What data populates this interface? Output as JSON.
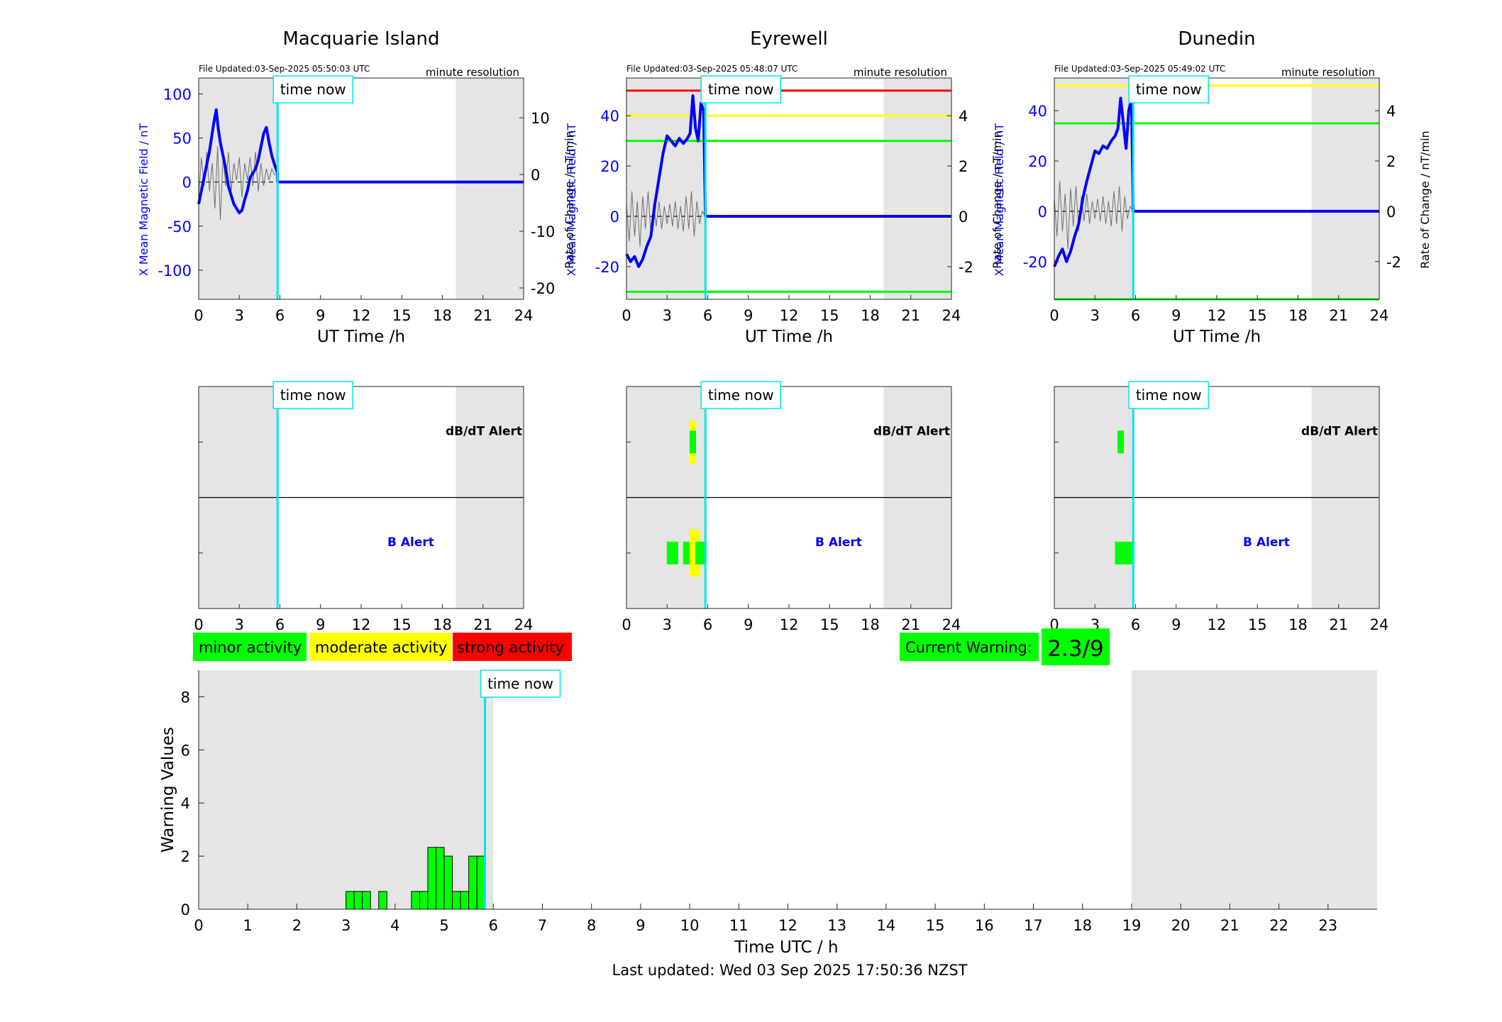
{
  "colors": {
    "background": "#ffffff",
    "night_shade": "#e5e5e5",
    "x_field": "#0000ff",
    "rate_of_change": "#707070",
    "time_now": "#00e5ee",
    "minor": "#00ff00",
    "moderate": "#ffff00",
    "strong": "#ff0000",
    "axis": "#262626"
  },
  "common": {
    "time_now_label": "time now",
    "resolution_label": "minute resolution",
    "xlabel": "UT Time /h",
    "y_left_label": "X Mean Magnetic Field / nT",
    "y_right_label": "Rate of Change / nT/min",
    "xticks": [
      0,
      3,
      6,
      9,
      12,
      15,
      18,
      21,
      24
    ],
    "dbdt_alert_label": "dB/dT Alert",
    "b_alert_label": "B Alert"
  },
  "stations": [
    {
      "id": "macquarie",
      "title": "Macquarie Island",
      "file_updated": "File Updated:03-Sep-2025 05:50:03 UTC",
      "time_now_h": 5.83,
      "night_h": [
        [
          0,
          5.83
        ],
        [
          19,
          24
        ]
      ],
      "field_chart": {
        "type": "line",
        "ylim_left": [
          -133,
          118
        ],
        "yticks_left": [
          -100,
          -50,
          0,
          50,
          100
        ],
        "ylim_right": [
          -22,
          17
        ],
        "yticks_right": [
          -20,
          -10,
          0,
          10
        ],
        "thresholds": [],
        "x_series": [
          [
            0,
            -25
          ],
          [
            0.2,
            -10
          ],
          [
            0.4,
            5
          ],
          [
            0.6,
            20
          ],
          [
            0.8,
            35
          ],
          [
            1,
            55
          ],
          [
            1.15,
            70
          ],
          [
            1.3,
            82
          ],
          [
            1.45,
            60
          ],
          [
            1.6,
            45
          ],
          [
            1.8,
            30
          ],
          [
            2,
            15
          ],
          [
            2.2,
            -5
          ],
          [
            2.4,
            -15
          ],
          [
            2.6,
            -25
          ],
          [
            2.8,
            -30
          ],
          [
            3,
            -35
          ],
          [
            3.2,
            -32
          ],
          [
            3.4,
            -20
          ],
          [
            3.6,
            -10
          ],
          [
            3.8,
            5
          ],
          [
            4,
            10
          ],
          [
            4.2,
            15
          ],
          [
            4.4,
            25
          ],
          [
            4.6,
            40
          ],
          [
            4.8,
            55
          ],
          [
            5,
            62
          ],
          [
            5.2,
            45
          ],
          [
            5.4,
            30
          ],
          [
            5.6,
            20
          ],
          [
            5.83,
            10
          ],
          [
            5.83,
            0
          ],
          [
            24,
            0
          ]
        ],
        "rate_series": [
          [
            0,
            -4
          ],
          [
            0.2,
            3
          ],
          [
            0.4,
            -2
          ],
          [
            0.6,
            4
          ],
          [
            0.8,
            -3
          ],
          [
            1,
            2
          ],
          [
            1.2,
            -6
          ],
          [
            1.4,
            5
          ],
          [
            1.6,
            -8
          ],
          [
            1.8,
            3
          ],
          [
            2,
            -2
          ],
          [
            2.2,
            4
          ],
          [
            2.4,
            -3
          ],
          [
            2.6,
            2
          ],
          [
            2.8,
            -1
          ],
          [
            3,
            3
          ],
          [
            3.2,
            -4
          ],
          [
            3.4,
            2
          ],
          [
            3.6,
            -1
          ],
          [
            3.8,
            3
          ],
          [
            4,
            -2
          ],
          [
            4.2,
            4
          ],
          [
            4.4,
            -3
          ],
          [
            4.6,
            2
          ],
          [
            4.8,
            -2
          ],
          [
            5,
            1
          ],
          [
            5.2,
            -1
          ],
          [
            5.4,
            1
          ],
          [
            5.6,
            0
          ],
          [
            5.83,
            0
          ]
        ]
      },
      "alerts": {
        "dbdt": [],
        "b": []
      }
    },
    {
      "id": "eyrewell",
      "title": "Eyrewell",
      "file_updated": "File Updated:03-Sep-2025 05:48:07 UTC",
      "time_now_h": 5.83,
      "night_h": [
        [
          0,
          5.83
        ],
        [
          19,
          24
        ]
      ],
      "field_chart": {
        "type": "line",
        "ylim_left": [
          -33,
          55
        ],
        "yticks_left": [
          -20,
          0,
          20,
          40
        ],
        "ylim_right": [
          -3.3,
          5.5
        ],
        "yticks_right": [
          -2,
          0,
          2,
          4
        ],
        "thresholds": [
          {
            "value": 50,
            "level": "strong"
          },
          {
            "value": 40,
            "level": "moderate"
          },
          {
            "value": 30,
            "level": "minor"
          },
          {
            "value": -30,
            "level": "minor"
          }
        ],
        "x_series": [
          [
            0,
            -15
          ],
          [
            0.3,
            -18
          ],
          [
            0.6,
            -16
          ],
          [
            0.9,
            -20
          ],
          [
            1.2,
            -17
          ],
          [
            1.5,
            -12
          ],
          [
            1.8,
            -8
          ],
          [
            2.1,
            5
          ],
          [
            2.4,
            15
          ],
          [
            2.7,
            25
          ],
          [
            3,
            32
          ],
          [
            3.3,
            30
          ],
          [
            3.6,
            28
          ],
          [
            3.9,
            31
          ],
          [
            4.2,
            29
          ],
          [
            4.5,
            31
          ],
          [
            4.7,
            33
          ],
          [
            4.9,
            48
          ],
          [
            5.1,
            35
          ],
          [
            5.3,
            30
          ],
          [
            5.5,
            45
          ],
          [
            5.7,
            42
          ],
          [
            5.83,
            0
          ],
          [
            24,
            0
          ]
        ],
        "rate_series": [
          [
            0,
            0.5
          ],
          [
            0.2,
            -1
          ],
          [
            0.4,
            1
          ],
          [
            0.6,
            -0.8
          ],
          [
            0.8,
            0.6
          ],
          [
            1,
            -1.2
          ],
          [
            1.2,
            0.8
          ],
          [
            1.4,
            -0.5
          ],
          [
            1.6,
            1
          ],
          [
            1.8,
            -0.7
          ],
          [
            2,
            0.5
          ],
          [
            2.2,
            -0.4
          ],
          [
            2.4,
            0.6
          ],
          [
            2.6,
            -0.5
          ],
          [
            2.8,
            0.4
          ],
          [
            3,
            -0.3
          ],
          [
            3.2,
            0.5
          ],
          [
            3.4,
            -0.4
          ],
          [
            3.6,
            0.6
          ],
          [
            3.8,
            -0.5
          ],
          [
            4,
            0.4
          ],
          [
            4.2,
            -0.6
          ],
          [
            4.4,
            0.8
          ],
          [
            4.6,
            -0.5
          ],
          [
            4.8,
            1
          ],
          [
            5,
            -0.8
          ],
          [
            5.2,
            0.6
          ],
          [
            5.4,
            -0.3
          ],
          [
            5.6,
            0.2
          ],
          [
            5.83,
            0
          ]
        ]
      },
      "alerts": {
        "dbdt": [
          {
            "h": 4.9,
            "level": "moderate"
          },
          {
            "h": 4.9,
            "level": "minor"
          }
        ],
        "b": [
          {
            "h": 3.4,
            "level": "minor"
          },
          {
            "h": 4.6,
            "level": "minor"
          },
          {
            "h": 4.9,
            "level": "moderate"
          },
          {
            "h": 5.2,
            "level": "moderate"
          },
          {
            "h": 5.5,
            "level": "minor"
          }
        ]
      }
    },
    {
      "id": "dunedin",
      "title": "Dunedin",
      "file_updated": "File Updated:03-Sep-2025 05:49:02 UTC",
      "time_now_h": 5.83,
      "night_h": [
        [
          0,
          5.83
        ],
        [
          19,
          24
        ]
      ],
      "field_chart": {
        "type": "line",
        "ylim_left": [
          -35,
          53
        ],
        "yticks_left": [
          -20,
          0,
          20,
          40
        ],
        "ylim_right": [
          -3.5,
          5.3
        ],
        "yticks_right": [
          -2,
          0,
          2,
          4
        ],
        "thresholds": [
          {
            "value": 50,
            "level": "moderate"
          },
          {
            "value": 35,
            "level": "minor"
          },
          {
            "value": -35,
            "level": "minor"
          }
        ],
        "x_series": [
          [
            0,
            -22
          ],
          [
            0.3,
            -18
          ],
          [
            0.6,
            -15
          ],
          [
            0.9,
            -20
          ],
          [
            1.2,
            -16
          ],
          [
            1.5,
            -10
          ],
          [
            1.8,
            -5
          ],
          [
            2.1,
            5
          ],
          [
            2.4,
            12
          ],
          [
            2.7,
            18
          ],
          [
            3,
            24
          ],
          [
            3.3,
            23
          ],
          [
            3.6,
            26
          ],
          [
            3.9,
            25
          ],
          [
            4.2,
            28
          ],
          [
            4.5,
            30
          ],
          [
            4.7,
            33
          ],
          [
            4.9,
            45
          ],
          [
            5.1,
            35
          ],
          [
            5.3,
            25
          ],
          [
            5.5,
            40
          ],
          [
            5.7,
            45
          ],
          [
            5.83,
            0
          ],
          [
            24,
            0
          ]
        ],
        "rate_series": [
          [
            0,
            0.5
          ],
          [
            0.2,
            -1
          ],
          [
            0.4,
            1.2
          ],
          [
            0.6,
            -0.8
          ],
          [
            0.8,
            0.7
          ],
          [
            1,
            -1.5
          ],
          [
            1.2,
            0.9
          ],
          [
            1.4,
            -0.6
          ],
          [
            1.6,
            1
          ],
          [
            1.8,
            -0.8
          ],
          [
            2,
            0.6
          ],
          [
            2.2,
            -0.4
          ],
          [
            2.4,
            0.7
          ],
          [
            2.6,
            -0.5
          ],
          [
            2.8,
            0.4
          ],
          [
            3,
            -0.3
          ],
          [
            3.2,
            0.5
          ],
          [
            3.4,
            -0.4
          ],
          [
            3.6,
            0.6
          ],
          [
            3.8,
            -0.5
          ],
          [
            4,
            0.4
          ],
          [
            4.2,
            -0.6
          ],
          [
            4.4,
            0.8
          ],
          [
            4.6,
            -0.5
          ],
          [
            4.8,
            1
          ],
          [
            5,
            -0.8
          ],
          [
            5.2,
            0.6
          ],
          [
            5.4,
            -0.3
          ],
          [
            5.6,
            0.2
          ],
          [
            5.83,
            0
          ]
        ]
      },
      "alerts": {
        "dbdt": [
          {
            "h": 4.9,
            "level": "minor"
          }
        ],
        "b": [
          {
            "h": 4.9,
            "level": "minor"
          },
          {
            "h": 5.5,
            "level": "minor"
          }
        ]
      }
    }
  ],
  "legend": {
    "minor": "minor activity",
    "moderate": "moderate activity",
    "strong": "strong activity"
  },
  "current_warning": {
    "label": "Current Warning:",
    "value": "2.3/9"
  },
  "chart_data": {
    "type": "bar",
    "ylabel": "Warning Values",
    "xlabel": "Time UTC / h",
    "ylim": [
      0,
      9
    ],
    "yticks": [
      0,
      2,
      4,
      6,
      8
    ],
    "xlim": [
      0,
      24
    ],
    "xticks": [
      0,
      1,
      2,
      3,
      4,
      5,
      6,
      7,
      8,
      9,
      10,
      11,
      12,
      13,
      14,
      15,
      16,
      17,
      18,
      19,
      20,
      21,
      22,
      23
    ],
    "time_now_h": 5.83,
    "night_h": [
      [
        0,
        6
      ],
      [
        19,
        24
      ]
    ],
    "bin_width_h": 0.1667,
    "bars": [
      {
        "x": 3.0,
        "value": 0.67
      },
      {
        "x": 3.1667,
        "value": 0.67
      },
      {
        "x": 3.3333,
        "value": 0.67
      },
      {
        "x": 3.6667,
        "value": 0.67
      },
      {
        "x": 4.3333,
        "value": 0.67
      },
      {
        "x": 4.5,
        "value": 0.67
      },
      {
        "x": 4.6667,
        "value": 2.33
      },
      {
        "x": 4.8333,
        "value": 2.33
      },
      {
        "x": 5.0,
        "value": 2.0
      },
      {
        "x": 5.1667,
        "value": 0.67
      },
      {
        "x": 5.3333,
        "value": 0.67
      },
      {
        "x": 5.5,
        "value": 2.0
      },
      {
        "x": 5.6667,
        "value": 2.0
      }
    ]
  },
  "footer": {
    "last_updated": "Last updated: Wed 03 Sep 2025 17:50:36 NZST"
  }
}
